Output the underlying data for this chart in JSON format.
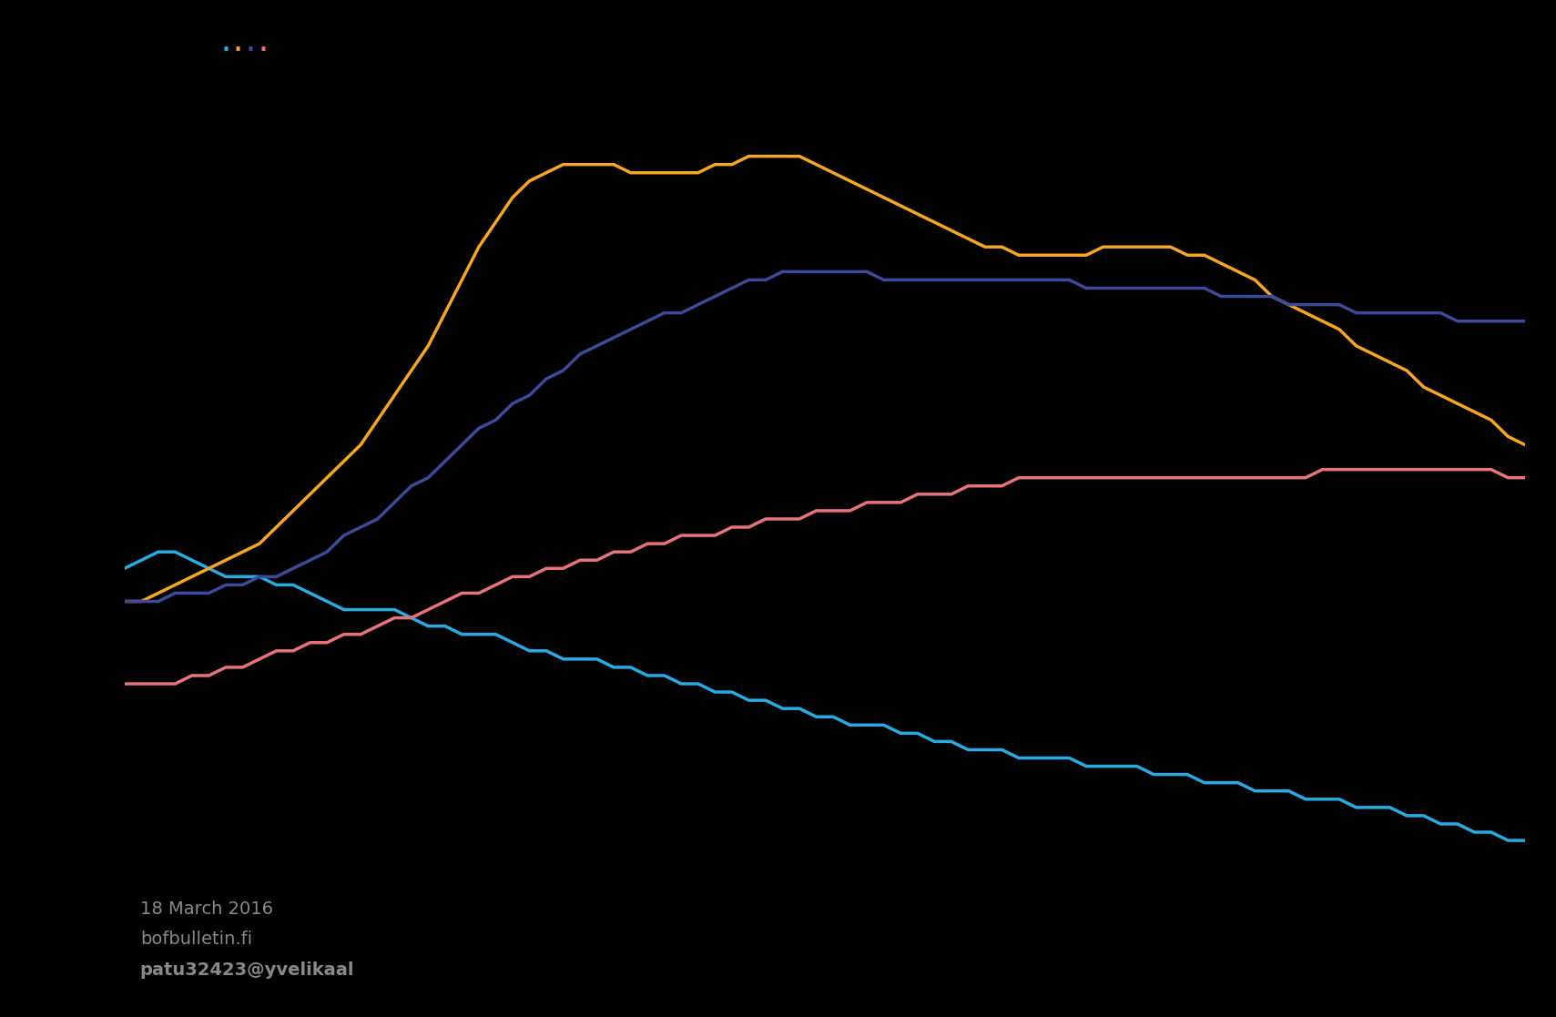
{
  "background_color": "#000000",
  "legend_colors": [
    "#29ABE2",
    "#F5A623",
    "#3D4A9A",
    "#E8737A"
  ],
  "annotation_line1": "18 March 2016",
  "annotation_line2": "bofbulletin.fi",
  "annotation_line3": "patu32423@yvelikaal",
  "annotation_color": "#888888",
  "annotation_fontsize": 14,
  "line_width": 2.5,
  "finland": {
    "color": "#29ABE2",
    "y": [
      72,
      73,
      74,
      74,
      73,
      72,
      71,
      71,
      71,
      70,
      70,
      69,
      68,
      67,
      67,
      67,
      67,
      66,
      65,
      65,
      64,
      64,
      64,
      63,
      62,
      62,
      61,
      61,
      61,
      60,
      60,
      59,
      59,
      58,
      58,
      57,
      57,
      56,
      56,
      55,
      55,
      54,
      54,
      53,
      53,
      53,
      52,
      52,
      51,
      51,
      50,
      50,
      50,
      49,
      49,
      49,
      49,
      48,
      48,
      48,
      48,
      47,
      47,
      47,
      46,
      46,
      46,
      45,
      45,
      45,
      44,
      44,
      44,
      43,
      43,
      43,
      42,
      42,
      41,
      41,
      40,
      40,
      39,
      39
    ]
  },
  "sweden": {
    "color": "#F5A623",
    "y": [
      68,
      68,
      69,
      70,
      71,
      72,
      73,
      74,
      75,
      77,
      79,
      81,
      83,
      85,
      87,
      90,
      93,
      96,
      99,
      103,
      107,
      111,
      114,
      117,
      119,
      120,
      121,
      121,
      121,
      121,
      120,
      120,
      120,
      120,
      120,
      121,
      121,
      122,
      122,
      122,
      122,
      121,
      120,
      119,
      118,
      117,
      116,
      115,
      114,
      113,
      112,
      111,
      111,
      110,
      110,
      110,
      110,
      110,
      111,
      111,
      111,
      111,
      111,
      110,
      110,
      109,
      108,
      107,
      105,
      104,
      103,
      102,
      101,
      99,
      98,
      97,
      96,
      94,
      93,
      92,
      91,
      90,
      88,
      87
    ]
  },
  "euro_area": {
    "color": "#3D4A9A",
    "y": [
      68,
      68,
      68,
      69,
      69,
      69,
      70,
      70,
      71,
      71,
      72,
      73,
      74,
      76,
      77,
      78,
      80,
      82,
      83,
      85,
      87,
      89,
      90,
      92,
      93,
      95,
      96,
      98,
      99,
      100,
      101,
      102,
      103,
      103,
      104,
      105,
      106,
      107,
      107,
      108,
      108,
      108,
      108,
      108,
      108,
      107,
      107,
      107,
      107,
      107,
      107,
      107,
      107,
      107,
      107,
      107,
      107,
      106,
      106,
      106,
      106,
      106,
      106,
      106,
      106,
      105,
      105,
      105,
      105,
      104,
      104,
      104,
      104,
      103,
      103,
      103,
      103,
      103,
      103,
      102,
      102,
      102,
      102,
      102
    ]
  },
  "germany": {
    "color": "#E8737A",
    "y": [
      58,
      58,
      58,
      58,
      59,
      59,
      60,
      60,
      61,
      62,
      62,
      63,
      63,
      64,
      64,
      65,
      66,
      66,
      67,
      68,
      69,
      69,
      70,
      71,
      71,
      72,
      72,
      73,
      73,
      74,
      74,
      75,
      75,
      76,
      76,
      76,
      77,
      77,
      78,
      78,
      78,
      79,
      79,
      79,
      80,
      80,
      80,
      81,
      81,
      81,
      82,
      82,
      82,
      83,
      83,
      83,
      83,
      83,
      83,
      83,
      83,
      83,
      83,
      83,
      83,
      83,
      83,
      83,
      83,
      83,
      83,
      84,
      84,
      84,
      84,
      84,
      84,
      84,
      84,
      84,
      84,
      84,
      83,
      83
    ]
  }
}
